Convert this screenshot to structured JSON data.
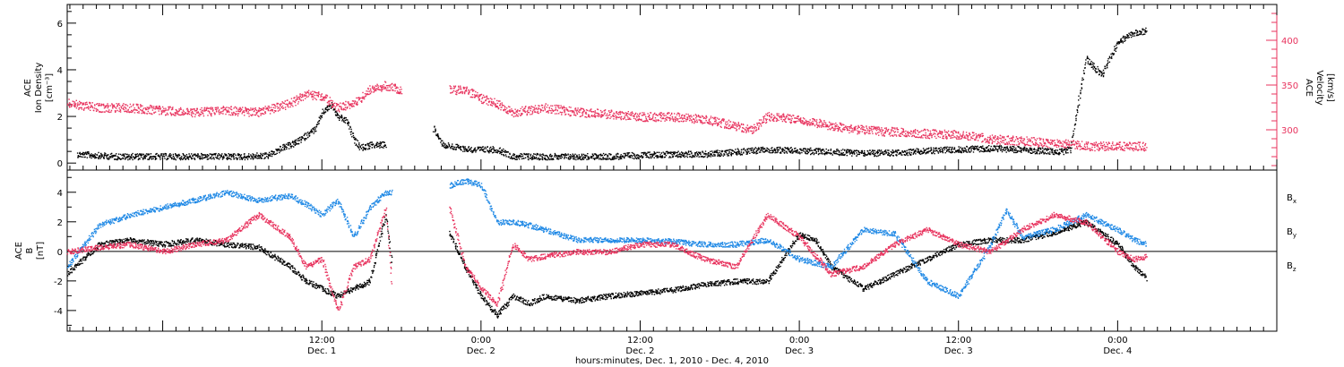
{
  "colors": {
    "black": "#000000",
    "pink": "#e8335e",
    "blue": "#1e88e5",
    "right_axis": "#e8335e"
  },
  "chart_data": [
    {
      "type": "scatter",
      "panel": "top",
      "ylabel_lines": [
        "ACE",
        "Ion Density",
        "[cm⁻³]"
      ],
      "y2label_lines": [
        "ACE",
        "Velocity",
        "[km/s]"
      ],
      "xlim": [
        -0.3,
        3.5
      ],
      "ylim": [
        -0.3,
        6.8
      ],
      "y2lim": [
        255,
        440
      ],
      "yticks": [
        0,
        2,
        4,
        6
      ],
      "y2ticks": [
        300,
        350,
        400
      ],
      "x_tick_labels": [
        {
          "x": 0.5,
          "time": "12:00",
          "date": "Dec. 1"
        },
        {
          "x": 1.0,
          "time": "0:00",
          "date": "Dec. 2"
        },
        {
          "x": 1.5,
          "time": "12:00",
          "date": "Dec. 2"
        },
        {
          "x": 2.0,
          "time": "0:00",
          "date": "Dec. 3"
        },
        {
          "x": 2.5,
          "time": "12:00",
          "date": "Dec. 3"
        },
        {
          "x": 3.0,
          "time": "0:00",
          "date": "Dec. 4"
        }
      ],
      "series": [
        {
          "axis": "left",
          "color": "#000000",
          "x": [
            -0.27,
            -0.15,
            0.0,
            0.1,
            0.2,
            0.27,
            0.33,
            0.38,
            0.42,
            0.45,
            0.48,
            0.5,
            0.53,
            0.55,
            0.58,
            0.6,
            0.62,
            0.63,
            0.66,
            0.7,
            0.75,
            0.85,
            0.88,
            0.92,
            0.97,
            1.0,
            1.05,
            1.1,
            1.15,
            1.2,
            1.3,
            1.4,
            1.5,
            1.6,
            1.7,
            1.8,
            1.9,
            2.0,
            2.1,
            2.2,
            2.3,
            2.4,
            2.5,
            2.6,
            2.7,
            2.75,
            2.82,
            2.85,
            2.9,
            2.95,
            3.0,
            3.05,
            3.09
          ],
          "y": [
            0.4,
            0.3,
            0.3,
            0.3,
            0.3,
            0.3,
            0.35,
            0.7,
            0.9,
            1.2,
            1.5,
            2.2,
            2.5,
            2.0,
            1.8,
            1.0,
            0.7,
            0.7,
            0.8,
            0.8,
            null,
            1.5,
            0.8,
            0.7,
            0.6,
            0.6,
            0.6,
            0.3,
            0.3,
            0.3,
            0.3,
            0.3,
            0.35,
            0.4,
            0.4,
            0.5,
            0.6,
            0.55,
            0.5,
            0.45,
            0.45,
            0.55,
            0.6,
            0.65,
            0.6,
            0.55,
            0.5,
            0.6,
            4.5,
            3.8,
            5.2,
            5.6,
            5.7
          ]
        },
        {
          "axis": "right",
          "color": "#e8335e",
          "x": [
            -0.3,
            -0.2,
            -0.1,
            0.0,
            0.1,
            0.2,
            0.3,
            0.4,
            0.45,
            0.5,
            0.55,
            0.6,
            0.65,
            0.7,
            0.75,
            0.85,
            0.9,
            0.95,
            1.0,
            1.05,
            1.1,
            1.2,
            1.3,
            1.4,
            1.5,
            1.6,
            1.7,
            1.8,
            1.85,
            1.9,
            2.0,
            2.1,
            2.2,
            2.3,
            2.4,
            2.5,
            2.6,
            2.7,
            2.8,
            2.85,
            2.9,
            3.0,
            3.09
          ],
          "y": [
            330,
            325,
            325,
            322,
            320,
            322,
            320,
            330,
            340,
            338,
            325,
            330,
            345,
            350,
            345,
            null,
            345,
            345,
            335,
            330,
            320,
            325,
            320,
            318,
            315,
            315,
            312,
            305,
            300,
            315,
            312,
            305,
            300,
            298,
            296,
            295,
            290,
            288,
            285,
            285,
            282,
            282,
            282
          ]
        }
      ]
    },
    {
      "type": "scatter",
      "panel": "bottom",
      "ylabel_lines": [
        "ACE",
        "B",
        "[nT]"
      ],
      "xlim": [
        -0.3,
        3.5
      ],
      "ylim": [
        -5.4,
        5.5
      ],
      "yticks": [
        -4,
        -2,
        0,
        2,
        4
      ],
      "zero_line": true,
      "xlabel": "hours:minutes, Dec.  1, 2010 - Dec.  4, 2010",
      "legend": [
        {
          "label": "B",
          "sub": "x",
          "color": "#000000"
        },
        {
          "label": "B",
          "sub": "y",
          "color": "#1e88e5"
        },
        {
          "label": "B",
          "sub": "z",
          "color": "#e8335e"
        }
      ],
      "series": [
        {
          "name": "Bx",
          "color": "#000000",
          "x": [
            -0.3,
            -0.2,
            -0.1,
            0.0,
            0.1,
            0.2,
            0.3,
            0.4,
            0.45,
            0.5,
            0.55,
            0.6,
            0.65,
            0.7,
            0.72,
            0.85,
            0.9,
            0.95,
            1.0,
            1.05,
            1.1,
            1.15,
            1.2,
            1.3,
            1.4,
            1.5,
            1.6,
            1.7,
            1.8,
            1.9,
            2.0,
            2.05,
            2.1,
            2.2,
            2.3,
            2.4,
            2.5,
            2.6,
            2.7,
            2.8,
            2.9,
            3.0,
            3.05,
            3.09
          ],
          "y": [
            -1.5,
            0.5,
            0.8,
            0.5,
            0.8,
            0.5,
            0.3,
            -1.0,
            -2.0,
            -2.5,
            -3.0,
            -2.5,
            -2.0,
            2.5,
            -1.0,
            null,
            1.3,
            -1.0,
            -3.0,
            -4.3,
            -3.0,
            -3.5,
            -3.0,
            -3.3,
            -3.0,
            -2.8,
            -2.6,
            -2.2,
            -2.0,
            -2.0,
            1.2,
            0.8,
            -1.0,
            -2.5,
            -1.5,
            -0.5,
            0.5,
            0.8,
            0.8,
            1.3,
            2.0,
            0.5,
            -1.0,
            -1.8
          ]
        },
        {
          "name": "By",
          "color": "#1e88e5",
          "x": [
            -0.3,
            -0.2,
            -0.1,
            0.0,
            0.1,
            0.2,
            0.3,
            0.4,
            0.45,
            0.5,
            0.55,
            0.6,
            0.65,
            0.7,
            0.72,
            0.85,
            0.9,
            0.95,
            1.0,
            1.05,
            1.1,
            1.15,
            1.2,
            1.3,
            1.4,
            1.5,
            1.6,
            1.7,
            1.8,
            1.9,
            2.0,
            2.1,
            2.2,
            2.3,
            2.4,
            2.5,
            2.6,
            2.65,
            2.7,
            2.8,
            2.9,
            3.0,
            3.05,
            3.09
          ],
          "y": [
            -1.0,
            1.8,
            2.5,
            3.0,
            3.5,
            4.0,
            3.5,
            3.8,
            3.2,
            2.5,
            3.5,
            1.0,
            3.0,
            4.0,
            4.0,
            null,
            4.5,
            4.8,
            4.5,
            2.0,
            2.0,
            1.8,
            1.5,
            0.8,
            0.8,
            0.8,
            0.7,
            0.5,
            0.5,
            0.8,
            -0.5,
            -1.0,
            1.5,
            1.2,
            -2.0,
            -3.0,
            0.5,
            2.8,
            1.0,
            1.5,
            2.5,
            1.5,
            0.8,
            0.5
          ]
        },
        {
          "name": "Bz",
          "color": "#e8335e",
          "x": [
            -0.3,
            -0.2,
            -0.1,
            0.0,
            0.1,
            0.2,
            0.3,
            0.4,
            0.45,
            0.5,
            0.55,
            0.6,
            0.65,
            0.7,
            0.72,
            0.85,
            0.9,
            0.95,
            1.0,
            1.05,
            1.1,
            1.15,
            1.2,
            1.3,
            1.4,
            1.5,
            1.6,
            1.7,
            1.8,
            1.9,
            2.0,
            2.1,
            2.2,
            2.3,
            2.4,
            2.5,
            2.6,
            2.7,
            2.8,
            2.9,
            3.0,
            3.05,
            3.09
          ],
          "y": [
            0.0,
            0.3,
            0.5,
            0.0,
            0.5,
            0.8,
            2.5,
            1.0,
            -1.0,
            -0.5,
            -4.0,
            -1.0,
            -0.5,
            3.0,
            -2.5,
            null,
            3.0,
            -1.0,
            -2.5,
            -3.5,
            0.5,
            -0.5,
            -0.3,
            0.0,
            0.0,
            0.5,
            0.5,
            -0.5,
            -1.0,
            2.5,
            1.0,
            -1.5,
            -1.0,
            0.5,
            1.5,
            0.5,
            0.0,
            1.5,
            2.5,
            2.0,
            0.0,
            -0.5,
            -0.3
          ]
        }
      ]
    }
  ]
}
